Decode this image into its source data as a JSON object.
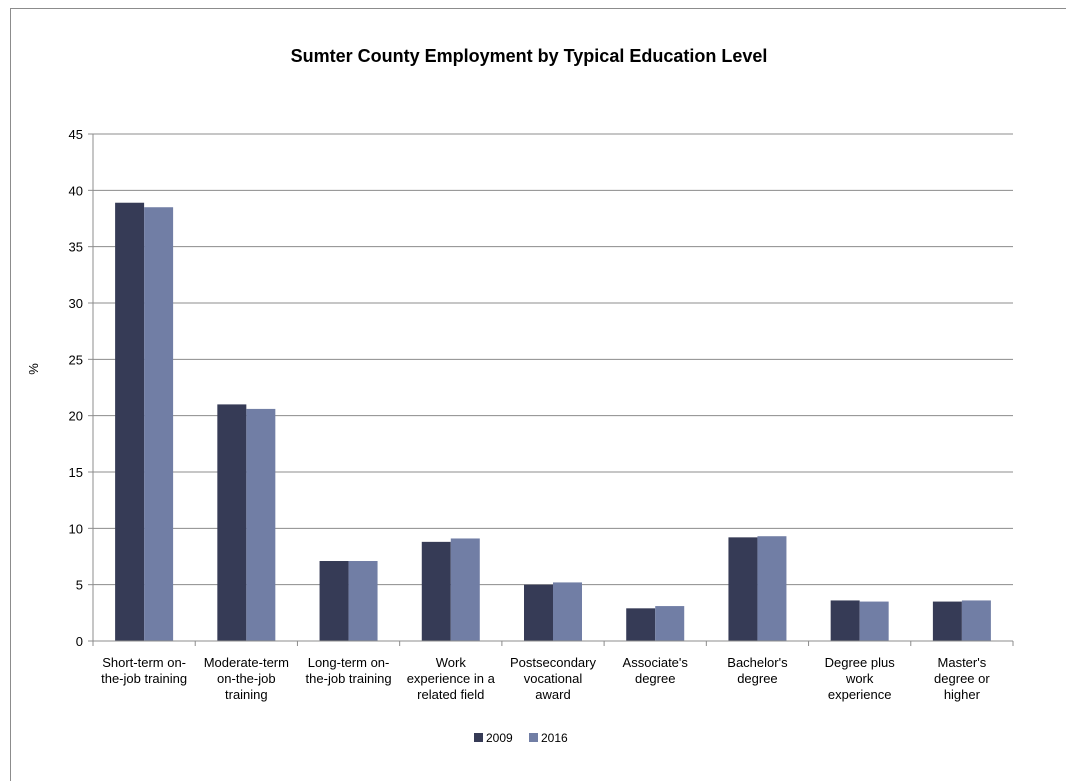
{
  "chart_data": {
    "type": "bar",
    "title": "Sumter County Employment by Typical Education Level",
    "xlabel": "",
    "ylabel": "%",
    "ylim": [
      0,
      45
    ],
    "yticks": [
      0,
      5,
      10,
      15,
      20,
      25,
      30,
      35,
      40,
      45
    ],
    "grid": true,
    "legend_position": "bottom",
    "categories": [
      [
        "Short-term on-",
        "the-job training"
      ],
      [
        "Moderate-term",
        "on-the-job",
        "training"
      ],
      [
        "Long-term on-",
        "the-job training"
      ],
      [
        "Work",
        "experience in a",
        "related field"
      ],
      [
        "Postsecondary",
        "vocational",
        "award"
      ],
      [
        "Associate's",
        "degree"
      ],
      [
        "Bachelor's",
        "degree"
      ],
      [
        "Degree plus",
        "work",
        "experience"
      ],
      [
        "Master's",
        "degree or",
        "higher"
      ]
    ],
    "series": [
      {
        "name": "2009",
        "color": "#363b56",
        "values": [
          38.9,
          21.0,
          7.1,
          8.8,
          5.0,
          2.9,
          9.2,
          3.6,
          3.5
        ]
      },
      {
        "name": "2016",
        "color": "#717ea5",
        "values": [
          38.5,
          20.6,
          7.1,
          9.1,
          5.2,
          3.1,
          9.3,
          3.5,
          3.6
        ]
      }
    ]
  }
}
